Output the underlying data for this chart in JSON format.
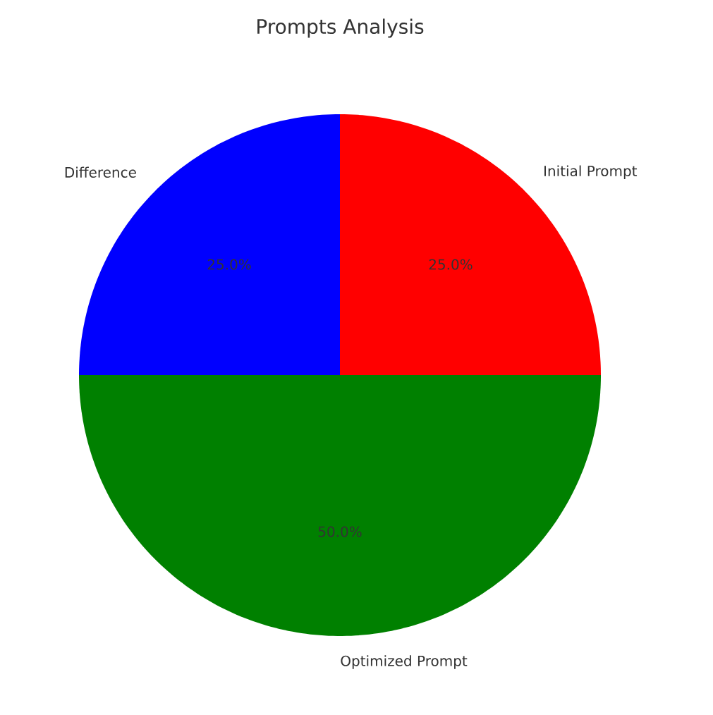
{
  "chart_data": {
    "type": "pie",
    "title": "Prompts Analysis",
    "categories": [
      "Initial Prompt",
      "Optimized Prompt",
      "Difference"
    ],
    "values": [
      25,
      50,
      25
    ],
    "colors": [
      "#ff0000",
      "#008000",
      "#0000ff"
    ],
    "value_labels": [
      "25.0%",
      "50.0%",
      "25.0%"
    ]
  }
}
